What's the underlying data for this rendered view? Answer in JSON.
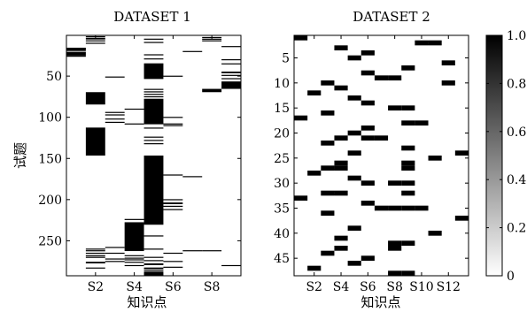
{
  "chart_data": [
    {
      "type": "heatmap",
      "title": "DATASET 1",
      "xlabel": "知识点",
      "ylabel": "试题",
      "n_cols": 9,
      "n_rows": 292,
      "x_tick_labels": [
        "S2",
        "S4",
        "S6",
        "S8"
      ],
      "x_tick_cols": [
        2,
        4,
        6,
        8
      ],
      "y_ticks": [
        50,
        100,
        150,
        200,
        250
      ],
      "value_range": [
        0,
        1
      ],
      "active_cells": [
        {
          "col": 1,
          "rows": [
            [
              16,
              19
            ],
            [
              22,
              24
            ],
            [
              21,
              21
            ],
            [
              25,
              26
            ]
          ]
        },
        {
          "col": 2,
          "rows": [
            [
              2,
              2
            ],
            [
              4,
              5
            ],
            [
              7,
              7
            ],
            [
              10,
              10
            ],
            [
              70,
              84
            ],
            [
              113,
              146
            ],
            [
              260,
              260
            ],
            [
              262,
              262
            ],
            [
              265,
              265
            ],
            [
              268,
              268
            ],
            [
              270,
              270
            ],
            [
              276,
              277
            ],
            [
              283,
              283
            ]
          ]
        },
        {
          "col": 3,
          "rows": [
            [
              51,
              51
            ],
            [
              94,
              94
            ],
            [
              97,
              97
            ],
            [
              102,
              102
            ],
            [
              106,
              106
            ],
            [
              258,
              258
            ],
            [
              265,
              265
            ],
            [
              272,
              272
            ],
            [
              275,
              275
            ]
          ]
        },
        {
          "col": 4,
          "rows": [
            [
              90,
              90
            ],
            [
              108,
              108
            ],
            [
              224,
              224
            ],
            [
              228,
              262
            ],
            [
              268,
              268
            ],
            [
              271,
              271
            ],
            [
              273,
              273
            ],
            [
              276,
              276
            ],
            [
              280,
              280
            ]
          ]
        },
        {
          "col": 5,
          "rows": [
            [
              5,
              5
            ],
            [
              9,
              9
            ],
            [
              24,
              24
            ],
            [
              29,
              29
            ],
            [
              35,
              53
            ],
            [
              66,
              66
            ],
            [
              69,
              69
            ],
            [
              72,
              72
            ],
            [
              75,
              75
            ],
            [
              78,
              108
            ],
            [
              113,
              113
            ],
            [
              124,
              124
            ],
            [
              128,
              128
            ],
            [
              132,
              132
            ],
            [
              147,
              230
            ],
            [
              244,
              244
            ],
            [
              260,
              260
            ],
            [
              270,
              270
            ],
            [
              274,
              274
            ],
            [
              278,
              279
            ],
            [
              283,
              284
            ],
            [
              286,
              286
            ],
            [
              288,
              292
            ]
          ]
        },
        {
          "col": 6,
          "rows": [
            [
              50,
              50
            ],
            [
              100,
              100
            ],
            [
              108,
              108
            ],
            [
              110,
              110
            ],
            [
              170,
              170
            ],
            [
              200,
              200
            ],
            [
              204,
              205
            ],
            [
              208,
              208
            ],
            [
              212,
              212
            ],
            [
              265,
              265
            ],
            [
              275,
              275
            ],
            [
              282,
              282
            ]
          ]
        },
        {
          "col": 7,
          "rows": [
            [
              20,
              20
            ],
            [
              172,
              172
            ],
            [
              262,
              262
            ]
          ]
        },
        {
          "col": 8,
          "rows": [
            [
              3,
              3
            ],
            [
              5,
              5
            ],
            [
              7,
              7
            ],
            [
              66,
              69
            ],
            [
              262,
              262
            ]
          ]
        },
        {
          "col": 9,
          "rows": [
            [
              14,
              14
            ],
            [
              30,
              30
            ],
            [
              35,
              35
            ],
            [
              45,
              46
            ],
            [
              49,
              49
            ],
            [
              53,
              53
            ],
            [
              57,
              65
            ],
            [
              280,
              280
            ]
          ]
        }
      ]
    },
    {
      "type": "heatmap",
      "title": "DATASET 2",
      "xlabel": "知识点",
      "n_cols": 13,
      "n_rows": 48,
      "x_tick_labels": [
        "S2",
        "S4",
        "S6",
        "S8",
        "S10",
        "S12"
      ],
      "x_tick_cols": [
        2,
        4,
        6,
        8,
        10,
        12
      ],
      "y_ticks": [
        5,
        10,
        15,
        20,
        25,
        30,
        35,
        40,
        45
      ],
      "value_range": [
        0,
        1
      ],
      "active_cells": [
        {
          "col": 1,
          "rows": [
            1,
            17,
            33
          ]
        },
        {
          "col": 2,
          "rows": [
            12,
            28,
            47
          ]
        },
        {
          "col": 3,
          "rows": [
            10,
            16,
            22,
            27,
            32,
            36,
            44
          ]
        },
        {
          "col": 4,
          "rows": [
            3,
            11,
            21,
            26,
            27,
            32,
            41,
            43
          ]
        },
        {
          "col": 5,
          "rows": [
            5,
            13,
            20,
            24,
            29,
            39,
            46
          ]
        },
        {
          "col": 6,
          "rows": [
            4,
            8,
            14,
            19,
            21,
            30,
            34,
            45
          ]
        },
        {
          "col": 7,
          "rows": [
            9,
            21,
            35
          ]
        },
        {
          "col": 8,
          "rows": [
            9,
            15,
            30,
            35,
            42,
            43,
            48
          ]
        },
        {
          "col": 9,
          "rows": [
            7,
            15,
            18,
            23,
            26,
            27,
            30,
            32,
            35,
            42,
            48
          ]
        },
        {
          "col": 10,
          "rows": [
            2,
            18,
            35
          ]
        },
        {
          "col": 11,
          "rows": [
            2,
            25,
            40
          ]
        },
        {
          "col": 12,
          "rows": [
            6,
            10
          ]
        },
        {
          "col": 13,
          "rows": [
            24,
            37
          ]
        }
      ]
    }
  ],
  "colorbar": {
    "ticks": [
      "0",
      "0.2",
      "0.4",
      "0.6",
      "0.8",
      "1.0"
    ],
    "range": [
      0,
      1
    ],
    "colors": [
      "#ffffff",
      "#000000"
    ]
  }
}
